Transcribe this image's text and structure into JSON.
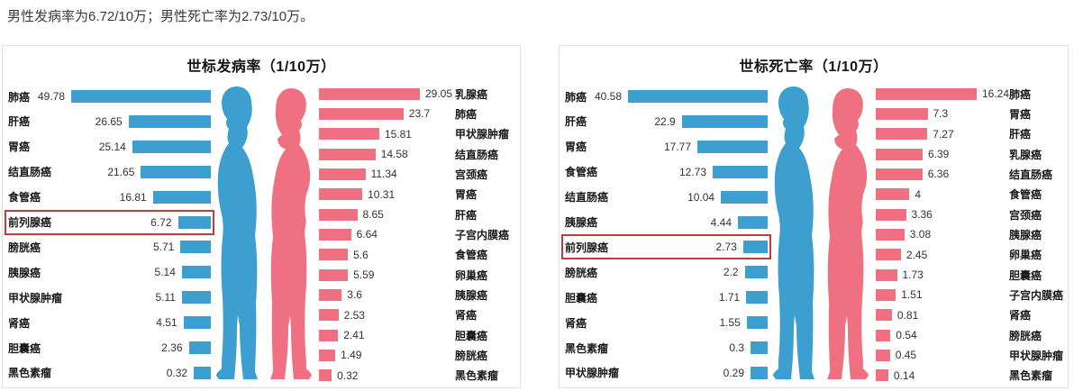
{
  "header": {
    "text": "男性发病率为6.72/10万；男性死亡率为2.73/10万。"
  },
  "colors": {
    "male_bar": "#3D9FD0",
    "female_bar": "#EF7080",
    "highlight_box": "#BF3E3C",
    "panel_border": "#E2E2E2"
  },
  "figures": {
    "male_icon": "male-profile-silhouette",
    "female_icon": "female-profile-silhouette"
  },
  "chart_data": [
    {
      "type": "bar",
      "title": "世标发病率（1/10万）",
      "unit": "1/10万",
      "orientation": "horizontal-back-to-back",
      "legend_position": "none",
      "grid": false,
      "series": [
        {
          "name": "男性",
          "color": "#3D9FD0",
          "side": "left"
        },
        {
          "name": "女性",
          "color": "#EF7080",
          "side": "right"
        }
      ],
      "male": [
        {
          "label": "肺癌",
          "value": "49.78"
        },
        {
          "label": "肝癌",
          "value": "26.65"
        },
        {
          "label": "胃癌",
          "value": "25.14"
        },
        {
          "label": "结直肠癌",
          "value": "21.65"
        },
        {
          "label": "食管癌",
          "value": "16.81"
        },
        {
          "label": "前列腺癌",
          "value": "6.72",
          "highlight": true
        },
        {
          "label": "膀胱癌",
          "value": "5.71"
        },
        {
          "label": "胰腺癌",
          "value": "5.14"
        },
        {
          "label": "甲状腺肿瘤",
          "value": "5.11"
        },
        {
          "label": "肾癌",
          "value": "4.51"
        },
        {
          "label": "胆囊癌",
          "value": "2.36"
        },
        {
          "label": "黑色素瘤",
          "value": "0.32"
        }
      ],
      "female": [
        {
          "label": "乳腺癌",
          "value": "29.05"
        },
        {
          "label": "肺癌",
          "value": "23.7"
        },
        {
          "label": "甲状腺肿瘤",
          "value": "15.81"
        },
        {
          "label": "结直肠癌",
          "value": "14.58"
        },
        {
          "label": "宫颈癌",
          "value": "11.34"
        },
        {
          "label": "胃癌",
          "value": "10.31"
        },
        {
          "label": "肝癌",
          "value": "8.65"
        },
        {
          "label": "子宫内膜癌",
          "value": "6.64"
        },
        {
          "label": "食管癌",
          "value": "5.6"
        },
        {
          "label": "卵巢癌",
          "value": "5.59"
        },
        {
          "label": "胰腺癌",
          "value": "3.6"
        },
        {
          "label": "肾癌",
          "value": "2.53"
        },
        {
          "label": "胆囊癌",
          "value": "2.41"
        },
        {
          "label": "膀胱癌",
          "value": "1.49"
        },
        {
          "label": "黑色素瘤",
          "value": "0.32"
        }
      ]
    },
    {
      "type": "bar",
      "title": "世标死亡率（1/10万）",
      "unit": "1/10万",
      "orientation": "horizontal-back-to-back",
      "legend_position": "none",
      "grid": false,
      "series": [
        {
          "name": "男性",
          "color": "#3D9FD0",
          "side": "left"
        },
        {
          "name": "女性",
          "color": "#EF7080",
          "side": "right"
        }
      ],
      "male": [
        {
          "label": "肺癌",
          "value": "40.58"
        },
        {
          "label": "肝癌",
          "value": "22.9"
        },
        {
          "label": "胃癌",
          "value": "17.77"
        },
        {
          "label": "食管癌",
          "value": "12.73"
        },
        {
          "label": "结直肠癌",
          "value": "10.04"
        },
        {
          "label": "胰腺癌",
          "value": "4.44"
        },
        {
          "label": "前列腺癌",
          "value": "2.73",
          "highlight": true
        },
        {
          "label": "膀胱癌",
          "value": "2.2"
        },
        {
          "label": "胆囊癌",
          "value": "1.71"
        },
        {
          "label": "肾癌",
          "value": "1.55"
        },
        {
          "label": "黑色素瘤",
          "value": "0.3"
        },
        {
          "label": "甲状腺肿瘤",
          "value": "0.29"
        }
      ],
      "female": [
        {
          "label": "肺癌",
          "value": "16.24"
        },
        {
          "label": "胃癌",
          "value": "7.3"
        },
        {
          "label": "肝癌",
          "value": "7.27"
        },
        {
          "label": "乳腺癌",
          "value": "6.39"
        },
        {
          "label": "结直肠癌",
          "value": "6.36"
        },
        {
          "label": "食管癌",
          "value": "4"
        },
        {
          "label": "宫颈癌",
          "value": "3.36"
        },
        {
          "label": "胰腺癌",
          "value": "3.08"
        },
        {
          "label": "卵巢癌",
          "value": "2.45"
        },
        {
          "label": "胆囊癌",
          "value": "1.73"
        },
        {
          "label": "子宫内膜癌",
          "value": "1.51"
        },
        {
          "label": "肾癌",
          "value": "0.81"
        },
        {
          "label": "膀胱癌",
          "value": "0.54"
        },
        {
          "label": "甲状腺肿瘤",
          "value": "0.45"
        },
        {
          "label": "黑色素瘤",
          "value": "0.14"
        }
      ]
    }
  ]
}
